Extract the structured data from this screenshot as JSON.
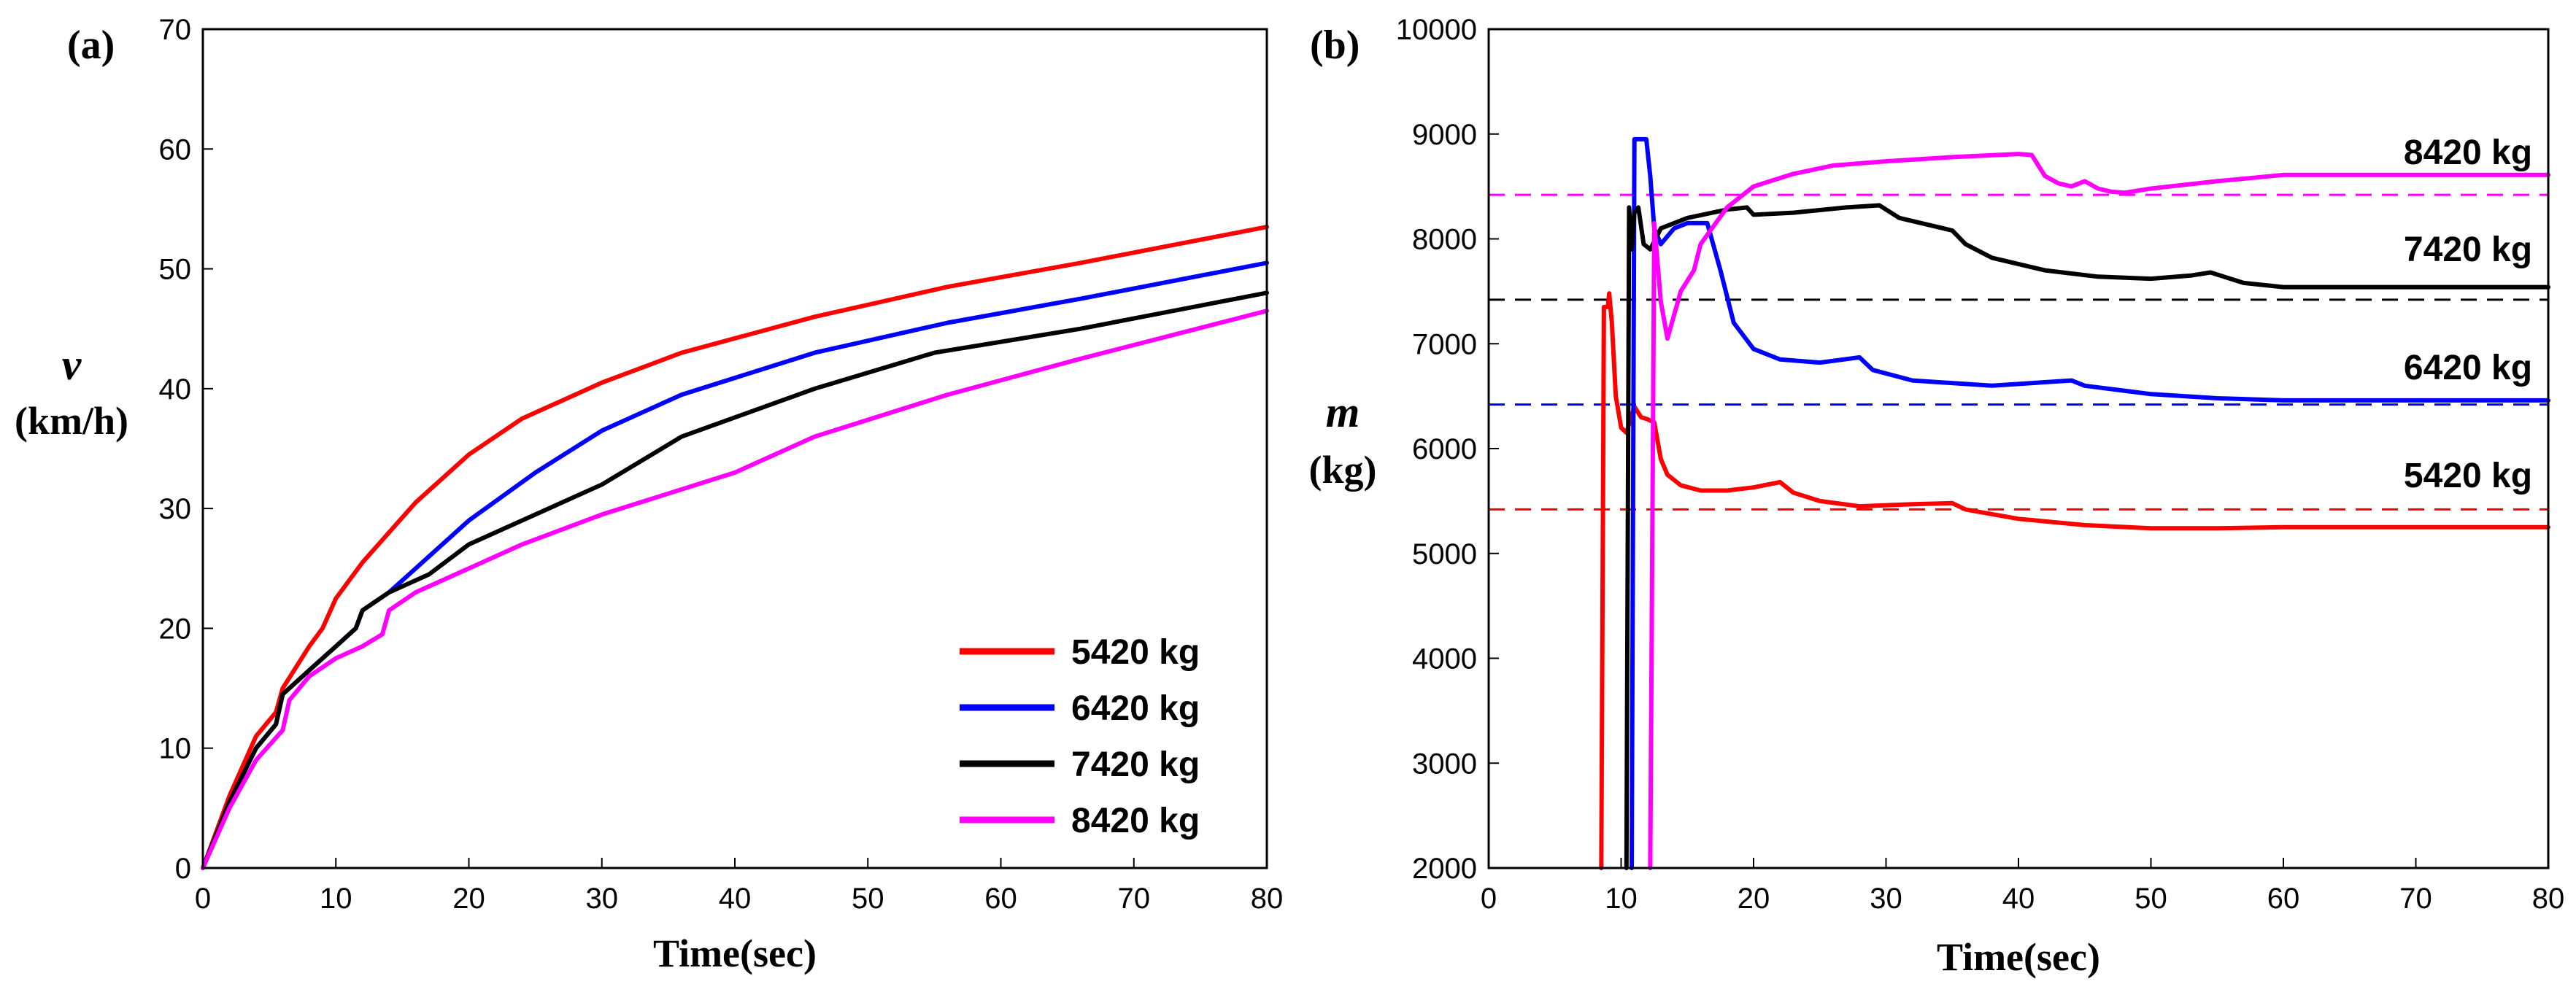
{
  "chart_data": [
    {
      "panel_label": "(a)",
      "type": "line",
      "xlabel": "Time(sec)",
      "ylabel_symbol": "v",
      "ylabel_unit": "(km/h)",
      "xlim": [
        0,
        80
      ],
      "ylim": [
        0,
        70
      ],
      "xticks": [
        0,
        10,
        20,
        30,
        40,
        50,
        60,
        70,
        80
      ],
      "yticks": [
        0,
        10,
        20,
        30,
        40,
        50,
        60,
        70
      ],
      "legend_position": "bottom-right",
      "series": [
        {
          "name": "5420 kg",
          "color": "#ff0000",
          "x": [
            0,
            2,
            4,
            5.5,
            6,
            8,
            9,
            10,
            12,
            14,
            16,
            20,
            24,
            30,
            36,
            46,
            56,
            66,
            80
          ],
          "y": [
            0,
            6,
            11,
            13,
            15,
            18.5,
            20,
            22.5,
            25.5,
            28,
            30.5,
            34.5,
            37.5,
            40.5,
            43,
            46,
            48.5,
            50.5,
            53.5
          ]
        },
        {
          "name": "6420 kg",
          "color": "#0000ff",
          "x": [
            0,
            2,
            4,
            5.5,
            6,
            8,
            10,
            11.5,
            12,
            14,
            16,
            20,
            25,
            30,
            36,
            46,
            56,
            66,
            80
          ],
          "y": [
            0,
            5.5,
            10,
            12,
            14.5,
            16.5,
            18.5,
            20,
            21.5,
            23,
            25,
            29,
            33,
            36.5,
            39.5,
            43,
            45.5,
            47.5,
            50.5
          ]
        },
        {
          "name": "7420 kg",
          "color": "#000000",
          "x": [
            0,
            2,
            4,
            5.5,
            6,
            8,
            10,
            11.5,
            12,
            14,
            17,
            20,
            25,
            30,
            36,
            46,
            55,
            66,
            80
          ],
          "y": [
            0,
            5.5,
            10,
            12,
            14.5,
            16.5,
            18.5,
            20,
            21.5,
            23,
            24.5,
            27,
            29.5,
            32,
            36,
            40,
            43,
            45,
            48
          ]
        },
        {
          "name": "8420 kg",
          "color": "#ff00ff",
          "x": [
            0,
            2,
            4,
            6,
            6.5,
            8,
            10,
            12,
            13.5,
            14,
            16,
            20,
            24,
            30,
            40,
            46,
            56,
            66,
            80
          ],
          "y": [
            0,
            5,
            9,
            11.5,
            14,
            16,
            17.5,
            18.5,
            19.5,
            21.5,
            23,
            25,
            27,
            29.5,
            33,
            36,
            39.5,
            42.5,
            46.5
          ]
        }
      ]
    },
    {
      "panel_label": "(b)",
      "type": "line",
      "xlabel": "Time(sec)",
      "ylabel_symbol": "m",
      "ylabel_unit": "(kg)",
      "xlim": [
        0,
        80
      ],
      "ylim": [
        2000,
        10000
      ],
      "xticks": [
        0,
        10,
        20,
        30,
        40,
        50,
        60,
        70,
        80
      ],
      "yticks": [
        2000,
        3000,
        4000,
        5000,
        6000,
        7000,
        8000,
        9000,
        10000
      ],
      "reference_lines": [
        {
          "label": "8420 kg",
          "value": 8420,
          "color": "#ff00ff"
        },
        {
          "label": "7420 kg",
          "value": 7420,
          "color": "#000000"
        },
        {
          "label": "6420 kg",
          "value": 6420,
          "color": "#0000ff"
        },
        {
          "label": "5420 kg",
          "value": 5420,
          "color": "#ff0000"
        }
      ],
      "series": [
        {
          "name": "5420 kg",
          "color": "#ff0000",
          "x": [
            8.5,
            8.7,
            9.0,
            9.1,
            9.3,
            9.6,
            10.0,
            10.4,
            11.0,
            11.5,
            12.0,
            12.5,
            13.0,
            13.5,
            14.5,
            16,
            18,
            20,
            22,
            23,
            25,
            28,
            32,
            35,
            36,
            40,
            45,
            50,
            55,
            60,
            70,
            80
          ],
          "y": [
            2000,
            7350,
            7350,
            7480,
            7200,
            6500,
            6200,
            6150,
            6400,
            6300,
            6280,
            6250,
            5900,
            5750,
            5650,
            5600,
            5600,
            5630,
            5680,
            5580,
            5500,
            5450,
            5470,
            5480,
            5420,
            5330,
            5270,
            5240,
            5240,
            5250,
            5250,
            5250
          ]
        },
        {
          "name": "6420 kg",
          "color": "#0000ff",
          "x": [
            10.8,
            11.0,
            11.9,
            12.2,
            12.5,
            13.0,
            14.0,
            15.0,
            16.5,
            17.5,
            18.5,
            20,
            22,
            25,
            28,
            29,
            32,
            38,
            44,
            45,
            50,
            55,
            60,
            70,
            80
          ],
          "y": [
            2000,
            8950,
            8950,
            8600,
            8100,
            7950,
            8100,
            8150,
            8150,
            7700,
            7200,
            6950,
            6850,
            6820,
            6870,
            6750,
            6650,
            6600,
            6650,
            6600,
            6520,
            6480,
            6460,
            6460,
            6460
          ]
        },
        {
          "name": "7420 kg",
          "color": "#000000",
          "x": [
            10.4,
            10.6,
            10.8,
            11.0,
            11.3,
            11.7,
            12.2,
            13.0,
            15,
            18,
            19.5,
            20,
            23,
            27,
            29.5,
            31,
            35,
            36,
            38,
            42,
            46,
            50,
            53,
            54.5,
            57,
            60,
            70,
            80
          ],
          "y": [
            2000,
            8300,
            7900,
            8250,
            8300,
            7950,
            7900,
            8100,
            8200,
            8280,
            8300,
            8230,
            8250,
            8300,
            8320,
            8200,
            8080,
            7950,
            7820,
            7700,
            7640,
            7620,
            7650,
            7680,
            7580,
            7540,
            7540,
            7540
          ]
        },
        {
          "name": "8420 kg",
          "color": "#ff00ff",
          "x": [
            12.2,
            12.5,
            13.0,
            13.5,
            14.5,
            15.5,
            16,
            18,
            20,
            23,
            26,
            30,
            35,
            40,
            41,
            42,
            43,
            44,
            45,
            46,
            47,
            48,
            50,
            55,
            60,
            70,
            80
          ],
          "y": [
            2000,
            8150,
            7400,
            7050,
            7500,
            7700,
            7950,
            8300,
            8500,
            8620,
            8700,
            8740,
            8780,
            8810,
            8800,
            8600,
            8530,
            8500,
            8550,
            8480,
            8450,
            8440,
            8480,
            8550,
            8610,
            8610,
            8610
          ]
        }
      ]
    }
  ]
}
